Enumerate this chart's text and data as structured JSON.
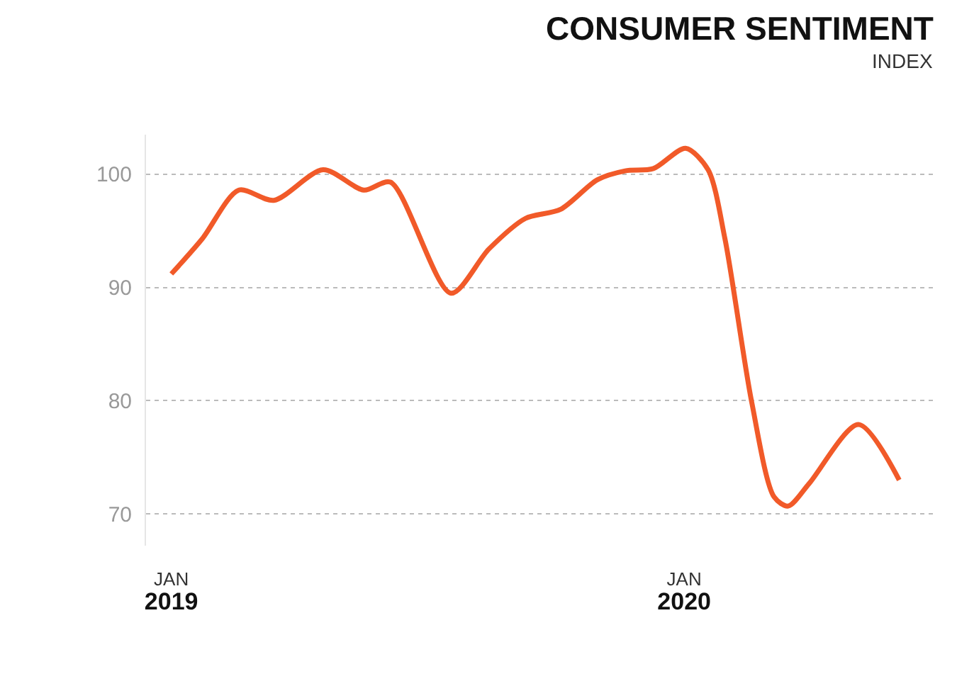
{
  "chart_data": {
    "type": "line",
    "title": "CONSUMER SENTIMENT",
    "subtitle": "INDEX",
    "x": [
      "2019-01-01",
      "2019-01-23",
      "2019-02-18",
      "2019-03-15",
      "2019-04-19",
      "2019-05-18",
      "2019-06-06",
      "2019-07-19",
      "2019-08-15",
      "2019-09-10",
      "2019-10-05",
      "2019-10-31",
      "2019-11-20",
      "2019-12-10",
      "2020-01-02",
      "2020-01-18",
      "2020-01-30",
      "2020-02-18",
      "2020-03-05",
      "2020-03-15",
      "2020-03-30",
      "2020-05-04",
      "2020-06-02"
    ],
    "series": [
      {
        "color": "#f15a29",
        "values": [
          91.2,
          94.3,
          98.6,
          97.7,
          100.4,
          98.6,
          99.3,
          89.5,
          93.4,
          96.1,
          96.9,
          99.5,
          100.3,
          100.5,
          102.3,
          100.4,
          94.3,
          79.9,
          71.5,
          70.7,
          72.7,
          77.9,
          73.0
        ]
      }
    ],
    "xlim": [
      "2018-12-14",
      "2020-06-28"
    ],
    "xticks": [
      {
        "value": "2019-01-01",
        "label": "JAN\n2019"
      },
      {
        "value": "2020-01-01",
        "label": "JAN\n2020"
      }
    ],
    "ylim": [
      67.2,
      103.5
    ],
    "yticks": [
      70,
      80,
      90,
      100
    ],
    "grid": "y",
    "marker": "none",
    "line_style": "solid"
  }
}
